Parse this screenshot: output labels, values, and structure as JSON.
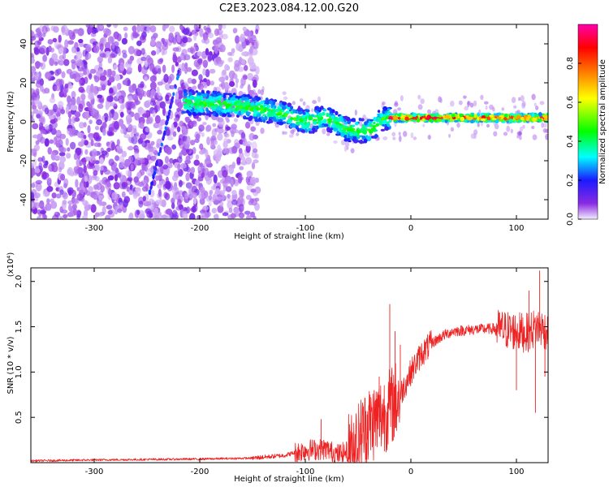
{
  "figure": {
    "title": "C2E3.2023.084.12.00.G20"
  },
  "chart_data": [
    {
      "type": "heatmap",
      "xlabel": "Height of straight line (km)",
      "ylabel": "Frequency (Hz)",
      "xlim": [
        -360,
        130
      ],
      "ylim": [
        -50,
        50
      ],
      "xticks": [
        -300,
        -200,
        -100,
        0,
        100
      ],
      "yticks": [
        -40,
        -20,
        0,
        20,
        40
      ],
      "colorbar": {
        "label": "Normalized spectral amplitude",
        "range": [
          0.0,
          1.0
        ],
        "ticks": [
          0.0,
          0.2,
          0.4,
          0.6,
          0.8
        ],
        "colors": [
          "#f3eeff",
          "#8a2be2",
          "#1a1aff",
          "#00ffff",
          "#00ff00",
          "#ffff00",
          "#ff8000",
          "#ff0000",
          "#ff00aa"
        ]
      },
      "ridge": {
        "x": [
          -215,
          -180,
          -150,
          -120,
          -100,
          -80,
          -60,
          -40,
          -25,
          0,
          50,
          100,
          130
        ],
        "y": [
          10,
          9,
          7,
          4,
          0,
          2,
          -4,
          -5,
          2,
          2,
          2,
          2,
          2
        ]
      },
      "streak": {
        "x": [
          -248,
          -220
        ],
        "y": [
          -38,
          25
        ]
      }
    },
    {
      "type": "line",
      "xlabel": "Height of straight line (km)",
      "ylabel": "SNR (10 * v/v)",
      "multiplier": "(x10⁴)",
      "xlim": [
        -360,
        130
      ],
      "ylim": [
        0,
        2.15
      ],
      "xticks": [
        -300,
        -200,
        -100,
        0,
        100
      ],
      "yticks": [
        0.5,
        1.0,
        1.5,
        2.0
      ],
      "ytick_labels": [
        "0.5",
        "1.0",
        "1.5",
        "2.0"
      ],
      "line_color": "#ee2222",
      "trend": {
        "x": [
          -360,
          -300,
          -200,
          -150,
          -120,
          -100,
          -80,
          -70,
          -60,
          -50,
          -40,
          -30,
          -20,
          -10,
          0,
          10,
          20,
          30,
          40,
          60,
          80,
          100,
          110,
          120,
          130
        ],
        "y": [
          0.02,
          0.03,
          0.04,
          0.05,
          0.08,
          0.14,
          0.15,
          0.09,
          0.12,
          0.25,
          0.42,
          0.5,
          0.6,
          0.75,
          1.0,
          1.2,
          1.32,
          1.4,
          1.45,
          1.47,
          1.48,
          1.45,
          1.43,
          1.5,
          1.45
        ]
      },
      "spikes": [
        {
          "x": -85,
          "y": 0.48
        },
        {
          "x": -45,
          "y": 0.62
        },
        {
          "x": -30,
          "y": 0.95
        },
        {
          "x": -20,
          "y": 1.75
        },
        {
          "x": -15,
          "y": 1.45
        },
        {
          "x": -10,
          "y": 1.3
        },
        {
          "x": 100,
          "y": 0.8
        },
        {
          "x": 112,
          "y": 1.9
        },
        {
          "x": 118,
          "y": 0.55
        },
        {
          "x": 122,
          "y": 2.12
        },
        {
          "x": 127,
          "y": 0.95
        }
      ]
    }
  ]
}
